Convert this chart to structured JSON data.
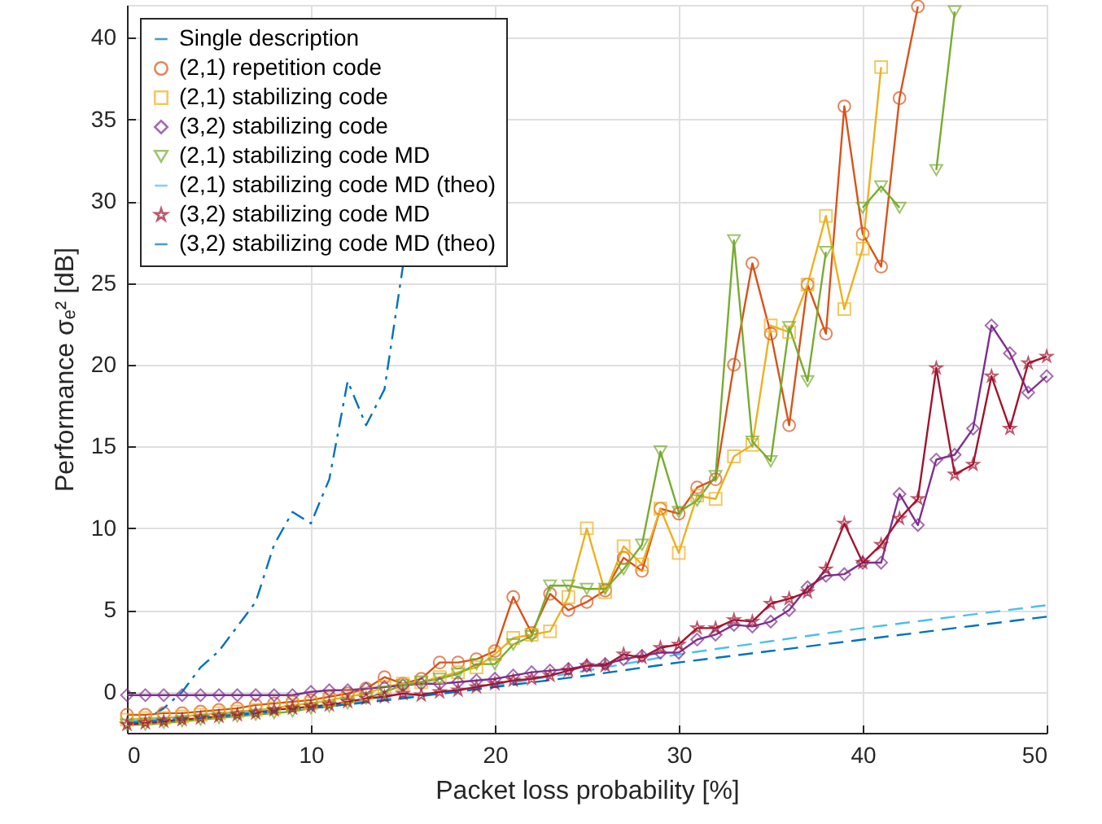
{
  "chart_data": {
    "type": "line",
    "xlabel": "Packet loss probability [%]",
    "ylabel": "Performance σₑ² [dB]",
    "x": [
      0,
      1,
      2,
      3,
      4,
      5,
      6,
      7,
      8,
      9,
      10,
      11,
      12,
      13,
      14,
      15,
      16,
      17,
      18,
      19,
      20,
      21,
      22,
      23,
      24,
      25,
      26,
      27,
      28,
      29,
      30,
      31,
      32,
      33,
      34,
      35,
      36,
      37,
      38,
      39,
      40,
      41,
      42,
      43,
      44,
      45,
      46,
      47,
      48,
      49,
      50
    ],
    "xlim": [
      0,
      50
    ],
    "xticks": [
      0,
      10,
      20,
      30,
      40,
      50
    ],
    "ylim": [
      -2.5,
      42
    ],
    "yticks": [
      0,
      5,
      10,
      15,
      20,
      25,
      30,
      35,
      40
    ],
    "grid": true,
    "legend": "top left",
    "series": [
      {
        "name": "Single description",
        "color": "#0072bd",
        "marker": "none",
        "line_style": "dashdot",
        "values": [
          -2,
          -1.7,
          -1,
          0,
          1.5,
          2.5,
          4,
          5.5,
          9,
          11,
          10.3,
          13,
          19,
          16.3,
          18.5,
          26,
          null,
          null,
          null,
          null,
          null,
          null,
          null,
          null,
          null,
          null,
          null,
          null,
          null,
          null,
          null,
          null,
          null,
          null,
          null,
          null,
          null,
          null,
          null,
          null,
          null,
          null,
          null,
          null,
          null,
          null,
          null,
          null,
          null,
          null,
          null
        ]
      },
      {
        "name": "(2,1) repetition code",
        "color": "#d95319",
        "marker": "circle",
        "line_style": "solid",
        "values": [
          -1.4,
          -1.4,
          -1.3,
          -1.3,
          -1.2,
          -1.1,
          -1.0,
          -0.8,
          -0.7,
          -0.6,
          -0.5,
          -0.3,
          -0.1,
          0.2,
          0.9,
          0.5,
          0.8,
          1.8,
          1.8,
          2.0,
          2.5,
          5.8,
          3.6,
          6.0,
          5.0,
          5.5,
          6.2,
          8.2,
          7.4,
          11.2,
          10.9,
          12.5,
          13.0,
          20.0,
          26.2,
          21.9,
          16.3,
          24.9,
          21.9,
          35.8,
          28,
          26,
          36.3,
          41.9,
          null,
          null,
          null,
          null,
          null,
          null,
          null
        ]
      },
      {
        "name": "(2,1) stabilizing code",
        "color": "#edb120",
        "marker": "square",
        "line_style": "solid",
        "values": [
          -1.7,
          -1.6,
          -1.6,
          -1.5,
          -1.4,
          -1.3,
          -1.2,
          -1.1,
          -1.0,
          -0.8,
          -0.7,
          -0.5,
          -0.3,
          -0.1,
          0.3,
          0.5,
          0.6,
          0.9,
          1.2,
          1.5,
          2.3,
          3.3,
          3.5,
          3.7,
          5.8,
          10.0,
          6.1,
          8.9,
          7.8,
          11.2,
          8.5,
          12.0,
          11.8,
          14.4,
          15.1,
          22.4,
          22,
          24.9,
          29.1,
          23.4,
          27.1,
          38.2,
          null,
          null,
          null,
          null,
          null,
          null,
          null,
          null,
          null
        ]
      },
      {
        "name": "(3,2) stabilizing code",
        "color": "#7e2f8e",
        "marker": "diamond",
        "line_style": "solid",
        "values": [
          -0.2,
          -0.2,
          -0.2,
          -0.2,
          -0.2,
          -0.2,
          -0.2,
          -0.2,
          -0.2,
          -0.2,
          0,
          0.1,
          0.1,
          0.2,
          0.3,
          0.4,
          0.5,
          0.5,
          0.6,
          0.7,
          0.8,
          1.0,
          1.2,
          1.3,
          1.4,
          1.6,
          1.7,
          2.0,
          2.2,
          2.4,
          2.4,
          3.2,
          3.5,
          4.1,
          4.0,
          4.3,
          5.0,
          6.4,
          7.1,
          7.2,
          7.9,
          7.9,
          12.1,
          10.2,
          14.2,
          14.5,
          16.1,
          22.4,
          20.7,
          18.3,
          19.3
        ]
      },
      {
        "name": "(2,1) stabilizing code MD",
        "color": "#77ac30",
        "marker": "triangle",
        "line_style": "solid",
        "values": [
          -2.0,
          -2.0,
          -1.9,
          -1.8,
          -1.7,
          -1.6,
          -1.5,
          -1.4,
          -1.3,
          -1.2,
          -1.0,
          -0.9,
          -0.7,
          -0.4,
          0.0,
          0.4,
          0.6,
          0.8,
          1.1,
          1.7,
          1.7,
          2.9,
          3.4,
          6.5,
          6.5,
          6.3,
          6.3,
          7.5,
          9.0,
          14.7,
          11.0,
          11.7,
          13.2,
          27.6,
          15.3,
          14.1,
          22.3,
          19.0,
          26.9,
          null,
          29.6,
          30.9,
          29.6,
          null,
          31.9,
          41.6,
          null,
          null,
          null,
          null,
          null
        ]
      },
      {
        "name": "(2,1) stabilizing code MD (theo)",
        "color": "#4dbeee",
        "marker": "none",
        "line_style": "dashed",
        "x": [
          0,
          5,
          10,
          15,
          20,
          25,
          30,
          35,
          40,
          45,
          50
        ],
        "values": [
          -1.8,
          -1.4,
          -0.9,
          -0.3,
          0.4,
          1.3,
          2.3,
          3.1,
          3.9,
          4.6,
          5.3
        ]
      },
      {
        "name": "(3,2) stabilizing code MD",
        "color": "#a2142f",
        "marker": "star",
        "line_style": "solid",
        "values": [
          -2.0,
          -1.9,
          -1.8,
          -1.7,
          -1.6,
          -1.5,
          -1.4,
          -1.3,
          -1.1,
          -1.0,
          -0.9,
          -0.8,
          -0.6,
          -0.4,
          -0.3,
          -0.1,
          -0.2,
          0.0,
          0.1,
          0.3,
          0.5,
          0.7,
          0.8,
          1.0,
          1.3,
          1.6,
          1.6,
          2.3,
          2.1,
          2.7,
          2.9,
          3.9,
          3.9,
          4.4,
          4.3,
          5.4,
          5.7,
          6.1,
          7.5,
          10.3,
          7.9,
          9.0,
          10.6,
          11.8,
          19.8,
          13.3,
          13.9,
          19.3,
          16.1,
          20.1,
          20.5
        ]
      },
      {
        "name": "(3,2) stabilizing code MD (theo)",
        "color": "#0072bd",
        "marker": "none",
        "line_style": "dashed",
        "x": [
          0,
          5,
          10,
          15,
          20,
          25,
          30,
          35,
          40,
          45,
          50
        ],
        "values": [
          -1.9,
          -1.5,
          -1.0,
          -0.4,
          0.3,
          1.0,
          1.8,
          2.5,
          3.2,
          3.9,
          4.6
        ]
      }
    ]
  }
}
